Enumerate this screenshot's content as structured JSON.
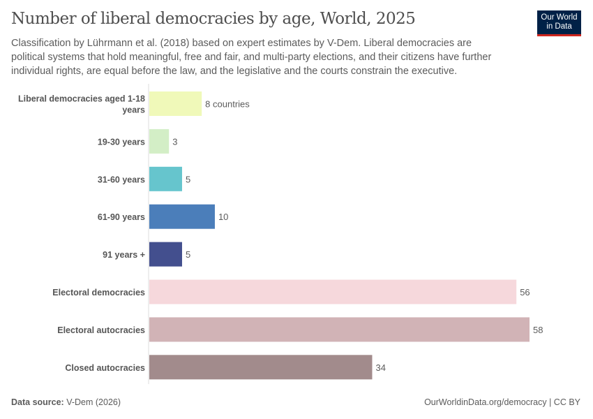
{
  "header": {
    "title": "Number of liberal democracies by age, World, 2025",
    "subtitle": "Classification by Lührmann et al. (2018) based on expert estimates by V-Dem. Liberal democracies are political systems that hold meaningful, free and fair, and multi-party elections, and their citizens have further individual rights, are equal before the law, and the legislative and the courts constrain the executive.",
    "logo_text": "Our World in Data"
  },
  "chart_data": {
    "type": "bar",
    "orientation": "horizontal",
    "categories": [
      "Liberal democracies aged 1-18 years",
      "19-30 years",
      "31-60 years",
      "61-90 years",
      "91 years +",
      "Electoral democracies",
      "Electoral autocracies",
      "Closed autocracies"
    ],
    "values": [
      8,
      3,
      5,
      10,
      5,
      56,
      58,
      34
    ],
    "value_labels": [
      "8 countries",
      "3",
      "5",
      "10",
      "5",
      "56",
      "58",
      "34"
    ],
    "colors": [
      "#f0f9b9",
      "#d3eec6",
      "#66c5cd",
      "#4b7eba",
      "#434f8e",
      "#f6d8dc",
      "#d1b3b6",
      "#a28b8c"
    ],
    "xlim": [
      0,
      58
    ],
    "grid": false
  },
  "footer": {
    "source_label": "Data source:",
    "source": "V-Dem (2026)",
    "url": "OurWorldinData.org/democracy | CC BY"
  }
}
